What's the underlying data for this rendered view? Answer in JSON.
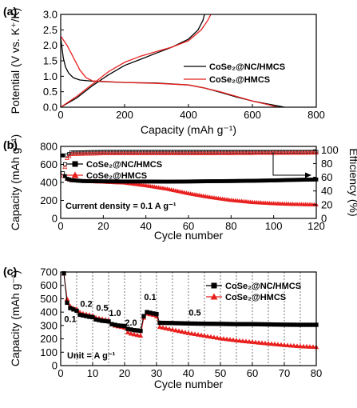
{
  "chart_data": [
    {
      "panel": "(a)",
      "type": "line",
      "xlabel": "Capacity (mAh g⁻¹)",
      "ylabel": "Potential (V vs. K⁺/K)",
      "xlim": [
        0,
        800
      ],
      "ylim": [
        0,
        3.0
      ],
      "xticks": [
        "0",
        "200",
        "400",
        "600",
        "800"
      ],
      "yticks": [
        "0.0",
        "0.5",
        "1.0",
        "1.5",
        "2.0",
        "2.5",
        "3.0"
      ],
      "legend_position": "right",
      "series": [
        {
          "name": "CoSe₂@NC/HMCS",
          "color": "#000000",
          "discharge": [
            [
              0,
              2.25
            ],
            [
              3,
              2.0
            ],
            [
              8,
              1.6
            ],
            [
              15,
              1.3
            ],
            [
              25,
              1.1
            ],
            [
              40,
              0.95
            ],
            [
              60,
              0.88
            ],
            [
              100,
              0.84
            ],
            [
              200,
              0.8
            ],
            [
              300,
              0.78
            ],
            [
              400,
              0.72
            ],
            [
              450,
              0.62
            ],
            [
              500,
              0.48
            ],
            [
              550,
              0.33
            ],
            [
              600,
              0.2
            ],
            [
              650,
              0.1
            ],
            [
              690,
              0.02
            ],
            [
              700,
              0.0
            ]
          ],
          "charge": [
            [
              0,
              0.0
            ],
            [
              50,
              0.3
            ],
            [
              100,
              0.7
            ],
            [
              150,
              1.05
            ],
            [
              200,
              1.35
            ],
            [
              250,
              1.55
            ],
            [
              300,
              1.75
            ],
            [
              350,
              1.95
            ],
            [
              400,
              2.2
            ],
            [
              430,
              2.5
            ],
            [
              445,
              2.8
            ],
            [
              450,
              3.0
            ]
          ]
        },
        {
          "name": "CoSe₂@HMCS",
          "color": "#e8211f",
          "discharge": [
            [
              0,
              2.3
            ],
            [
              10,
              2.15
            ],
            [
              20,
              2.0
            ],
            [
              40,
              1.6
            ],
            [
              60,
              1.2
            ],
            [
              80,
              0.95
            ],
            [
              100,
              0.85
            ],
            [
              200,
              0.8
            ],
            [
              300,
              0.77
            ],
            [
              400,
              0.72
            ],
            [
              450,
              0.62
            ],
            [
              500,
              0.5
            ],
            [
              550,
              0.35
            ],
            [
              600,
              0.2
            ],
            [
              650,
              0.08
            ],
            [
              680,
              0.0
            ]
          ],
          "charge": [
            [
              0,
              0.0
            ],
            [
              50,
              0.35
            ],
            [
              100,
              0.75
            ],
            [
              150,
              1.15
            ],
            [
              200,
              1.45
            ],
            [
              250,
              1.65
            ],
            [
              300,
              1.8
            ],
            [
              350,
              1.95
            ],
            [
              400,
              2.15
            ],
            [
              440,
              2.5
            ],
            [
              460,
              2.8
            ],
            [
              470,
              3.0
            ]
          ]
        }
      ]
    },
    {
      "panel": "(b)",
      "type": "scatter",
      "xlabel": "Cycle number",
      "ylabel": "Capacity (mAh g⁻¹)",
      "y2label": "Efficiency (%)",
      "xlim": [
        0,
        120
      ],
      "ylim": [
        0,
        800
      ],
      "y2lim": [
        0,
        105
      ],
      "xticks": [
        "0",
        "20",
        "40",
        "60",
        "80",
        "100",
        "120"
      ],
      "yticks": [
        "0",
        "200",
        "400",
        "600",
        "800"
      ],
      "y2ticks": [
        "0",
        "20",
        "40",
        "60",
        "80",
        "100"
      ],
      "legend_position": "top-left",
      "annotation": "Current density = 0.1 A g⁻¹",
      "series": [
        {
          "name": "CoSe₂@NC/HMCS",
          "color": "#000000",
          "marker": "square",
          "capacity": [
            [
              1,
              700
            ],
            [
              2,
              470
            ],
            [
              3,
              440
            ],
            [
              5,
              425
            ],
            [
              10,
              415
            ],
            [
              20,
              412
            ],
            [
              30,
              410
            ],
            [
              40,
              410
            ],
            [
              50,
              408
            ],
            [
              60,
              410
            ],
            [
              70,
              413
            ],
            [
              80,
              415
            ],
            [
              90,
              418
            ],
            [
              100,
              422
            ],
            [
              110,
              428
            ],
            [
              120,
              432
            ]
          ],
          "efficiency": [
            [
              1,
              66
            ],
            [
              3,
              92
            ],
            [
              5,
              96
            ],
            [
              20,
              97
            ],
            [
              60,
              97
            ],
            [
              120,
              97
            ]
          ]
        },
        {
          "name": "CoSe₂@HMCS",
          "color": "#e8211f",
          "marker": "triangle",
          "capacity": [
            [
              1,
              700
            ],
            [
              2,
              470
            ],
            [
              3,
              440
            ],
            [
              5,
              425
            ],
            [
              10,
              418
            ],
            [
              20,
              408
            ],
            [
              30,
              398
            ],
            [
              40,
              368
            ],
            [
              50,
              330
            ],
            [
              60,
              280
            ],
            [
              70,
              238
            ],
            [
              80,
              205
            ],
            [
              90,
              182
            ],
            [
              100,
              168
            ],
            [
              110,
              160
            ],
            [
              120,
              155
            ]
          ],
          "efficiency": [
            [
              1,
              62
            ],
            [
              3,
              88
            ],
            [
              5,
              94
            ],
            [
              20,
              95
            ],
            [
              60,
              95
            ],
            [
              120,
              96
            ]
          ]
        }
      ]
    },
    {
      "panel": "(c)",
      "type": "scatter",
      "xlabel": "Cycle number",
      "ylabel": "Capacity (mAh g⁻¹)",
      "xlim": [
        0,
        80
      ],
      "ylim": [
        0,
        700
      ],
      "xticks": [
        "0",
        "10",
        "20",
        "30",
        "40",
        "50",
        "60",
        "70",
        "80"
      ],
      "yticks": [
        "0",
        "100",
        "200",
        "300",
        "400",
        "500",
        "600",
        "700"
      ],
      "legend_position": "top-right",
      "annotation": "Unit = A g⁻¹",
      "rate_labels": [
        {
          "text": "0.1",
          "x": 3,
          "y": 325
        },
        {
          "text": "0.2",
          "x": 8,
          "y": 440
        },
        {
          "text": "0.5",
          "x": 13,
          "y": 410
        },
        {
          "text": "1.0",
          "x": 17,
          "y": 370
        },
        {
          "text": "2.0",
          "x": 22,
          "y": 300
        },
        {
          "text": "0.1",
          "x": 28,
          "y": 490
        },
        {
          "text": "0.5",
          "x": 42,
          "y": 375
        }
      ],
      "dividers": [
        5,
        10,
        15,
        20,
        25,
        30,
        35,
        40,
        45,
        50,
        55,
        60,
        65,
        70,
        75
      ],
      "series": [
        {
          "name": "CoSe₂@NC/HMCS",
          "color": "#000000",
          "marker": "square",
          "values": [
            [
              1,
              690
            ],
            [
              2,
              470
            ],
            [
              3,
              430
            ],
            [
              4,
              420
            ],
            [
              5,
              410
            ],
            [
              6,
              380
            ],
            [
              7,
              375
            ],
            [
              8,
              370
            ],
            [
              9,
              365
            ],
            [
              10,
              362
            ],
            [
              11,
              345
            ],
            [
              12,
              340
            ],
            [
              13,
              335
            ],
            [
              14,
              333
            ],
            [
              15,
              330
            ],
            [
              16,
              310
            ],
            [
              17,
              305
            ],
            [
              18,
              300
            ],
            [
              19,
              298
            ],
            [
              20,
              295
            ],
            [
              21,
              275
            ],
            [
              22,
              270
            ],
            [
              23,
              265
            ],
            [
              24,
              263
            ],
            [
              25,
              260
            ],
            [
              26,
              370
            ],
            [
              27,
              400
            ],
            [
              28,
              395
            ],
            [
              29,
              390
            ],
            [
              30,
              385
            ],
            [
              31,
              320
            ],
            [
              35,
              318
            ],
            [
              40,
              315
            ],
            [
              45,
              313
            ],
            [
              50,
              312
            ],
            [
              55,
              310
            ],
            [
              60,
              310
            ],
            [
              65,
              308
            ],
            [
              70,
              306
            ],
            [
              75,
              305
            ],
            [
              80,
              305
            ]
          ]
        },
        {
          "name": "CoSe₂@HMCS",
          "color": "#e8211f",
          "marker": "triangle",
          "values": [
            [
              1,
              690
            ],
            [
              2,
              500
            ],
            [
              3,
              445
            ],
            [
              4,
              430
            ],
            [
              5,
              425
            ],
            [
              6,
              400
            ],
            [
              7,
              390
            ],
            [
              8,
              385
            ],
            [
              9,
              380
            ],
            [
              10,
              375
            ],
            [
              11,
              360
            ],
            [
              12,
              355
            ],
            [
              13,
              350
            ],
            [
              14,
              345
            ],
            [
              15,
              340
            ],
            [
              16,
              310
            ],
            [
              17,
              300
            ],
            [
              18,
              295
            ],
            [
              19,
              290
            ],
            [
              20,
              285
            ],
            [
              21,
              250
            ],
            [
              22,
              240
            ],
            [
              23,
              235
            ],
            [
              24,
              230
            ],
            [
              25,
              225
            ],
            [
              26,
              360
            ],
            [
              27,
              390
            ],
            [
              28,
              385
            ],
            [
              29,
              380
            ],
            [
              30,
              370
            ],
            [
              31,
              290
            ],
            [
              35,
              270
            ],
            [
              40,
              245
            ],
            [
              45,
              225
            ],
            [
              50,
              205
            ],
            [
              55,
              190
            ],
            [
              60,
              178
            ],
            [
              65,
              166
            ],
            [
              70,
              155
            ],
            [
              75,
              146
            ],
            [
              80,
              140
            ]
          ]
        }
      ]
    }
  ]
}
